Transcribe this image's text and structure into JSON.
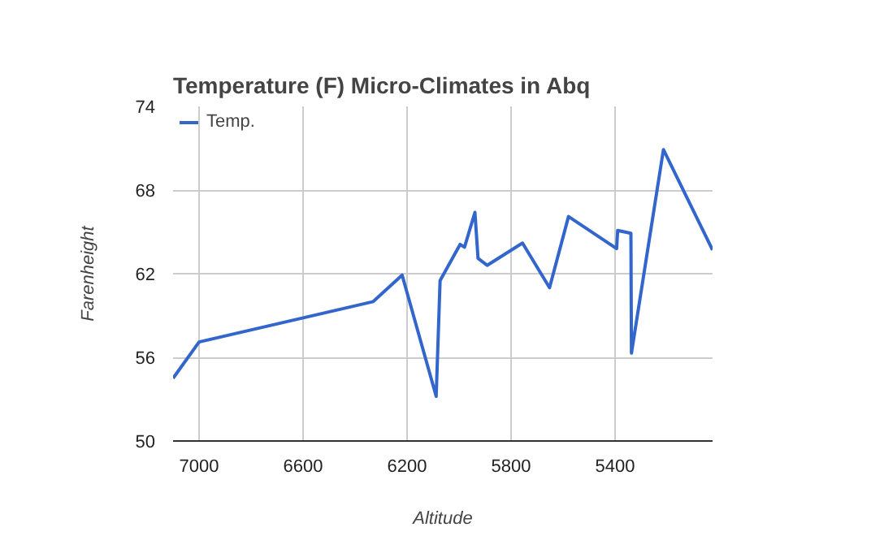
{
  "chart_data": {
    "type": "line",
    "title": "Temperature (F) Micro-Climates in Abq",
    "xlabel": "Altitude",
    "ylabel": "Farenheight",
    "x": [
      7100,
      7000,
      6330,
      6219,
      6088,
      6073,
      5996,
      5979,
      5939,
      5927,
      5892,
      5756,
      5652,
      5579,
      5394,
      5390,
      5339,
      5337,
      5214,
      5025
    ],
    "series": [
      {
        "name": "Temp.",
        "color": "#3366cc",
        "values": [
          54.5,
          57.1,
          60.0,
          61.9,
          53.2,
          61.5,
          64.1,
          63.9,
          66.4,
          63.1,
          62.6,
          64.2,
          61.0,
          66.1,
          63.8,
          65.1,
          64.9,
          56.3,
          70.9,
          63.7
        ]
      }
    ],
    "xlim": [
      7100,
      5025
    ],
    "xticks": [
      7000,
      6600,
      6200,
      5800,
      5400
    ],
    "ylim": [
      50,
      74
    ],
    "yticks": [
      50,
      56,
      62,
      68,
      74
    ],
    "grid": true,
    "legend": "top left",
    "marker": "none",
    "line_style": "solid"
  }
}
